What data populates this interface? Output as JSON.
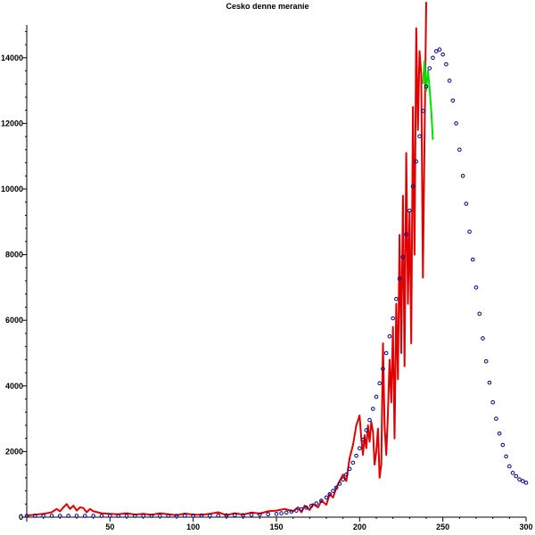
{
  "chart_data": {
    "type": "line",
    "title": "Cesko denne meranie",
    "xlabel": "",
    "ylabel": "",
    "xlim": [
      0,
      300
    ],
    "ylim": [
      0,
      15000
    ],
    "grid": false,
    "x_ticks": [
      50,
      100,
      150,
      200,
      250,
      300
    ],
    "y_ticks": [
      0,
      2000,
      4000,
      6000,
      8000,
      10000,
      12000,
      14000
    ],
    "series": [
      {
        "style": "line",
        "color": "#e00000",
        "x": [
          0,
          5,
          10,
          15,
          18,
          20,
          22,
          24,
          26,
          28,
          30,
          32,
          34,
          36,
          38,
          40,
          45,
          50,
          55,
          60,
          65,
          70,
          75,
          80,
          85,
          90,
          95,
          100,
          105,
          110,
          115,
          120,
          125,
          130,
          135,
          140,
          145,
          150,
          155,
          160,
          163,
          165,
          167,
          170,
          172,
          175,
          177,
          180,
          182,
          184,
          186,
          188,
          190,
          192,
          194,
          196,
          198,
          200,
          201,
          202,
          203,
          204,
          205,
          206,
          207,
          208,
          209,
          210,
          211,
          212,
          213,
          214,
          215,
          216,
          217,
          218,
          219,
          220,
          221,
          222,
          223,
          224,
          225,
          226,
          227,
          228,
          229,
          230,
          231,
          232,
          233,
          234,
          235,
          236,
          237,
          238,
          239,
          240
        ],
        "y": [
          50,
          80,
          100,
          150,
          250,
          180,
          300,
          400,
          250,
          350,
          200,
          300,
          280,
          150,
          250,
          180,
          120,
          100,
          90,
          120,
          80,
          100,
          70,
          120,
          90,
          60,
          110,
          80,
          70,
          100,
          150,
          60,
          120,
          80,
          140,
          110,
          180,
          200,
          250,
          180,
          300,
          150,
          350,
          220,
          400,
          300,
          500,
          380,
          700,
          600,
          900,
          1100,
          1300,
          1100,
          1800,
          2200,
          2800,
          3100,
          2400,
          1900,
          2500,
          2100,
          2800,
          2300,
          2900,
          2600,
          1600,
          2000,
          2700,
          1200,
          1600,
          5300,
          2800,
          1900,
          3200,
          4800,
          3500,
          5800,
          2400,
          6500,
          4200,
          8600,
          5000,
          9800,
          4600,
          11100,
          6500,
          9300,
          5300,
          12500,
          8000,
          14900,
          11800,
          14200,
          13500,
          7300,
          11500,
          15700
        ]
      },
      {
        "style": "line",
        "color": "#00e000",
        "x": [
          238,
          239,
          240,
          241,
          242,
          243,
          244
        ],
        "y": [
          13200,
          13900,
          13000,
          13600,
          13100,
          12400,
          11500
        ]
      },
      {
        "style": "scatter",
        "color": "#00008b",
        "x": [
          0,
          5,
          10,
          15,
          20,
          25,
          30,
          35,
          40,
          45,
          50,
          55,
          60,
          65,
          70,
          75,
          80,
          85,
          90,
          95,
          100,
          105,
          110,
          115,
          120,
          125,
          130,
          135,
          140,
          145,
          150,
          153,
          156,
          159,
          162,
          165,
          168,
          171,
          174,
          177,
          180,
          182,
          184,
          186,
          188,
          190,
          192,
          194,
          196,
          198,
          200,
          202,
          204,
          206,
          208,
          210,
          212,
          214,
          216,
          218,
          220,
          222,
          224,
          226,
          228,
          230,
          232,
          234,
          236,
          238,
          240,
          242,
          244,
          246,
          248,
          250,
          252,
          254,
          256,
          258,
          260,
          262,
          264,
          266,
          268,
          270,
          272,
          274,
          276,
          278,
          280,
          282,
          284,
          286,
          288,
          290,
          292,
          294,
          296,
          298,
          300
        ],
        "y": [
          40,
          40,
          40,
          40,
          40,
          40,
          40,
          40,
          40,
          40,
          40,
          40,
          40,
          40,
          40,
          40,
          40,
          40,
          40,
          45,
          45,
          50,
          50,
          50,
          55,
          60,
          60,
          70,
          80,
          90,
          100,
          120,
          140,
          170,
          200,
          240,
          290,
          350,
          420,
          500,
          600,
          700,
          800,
          900,
          1020,
          1150,
          1300,
          1470,
          1660,
          1870,
          2100,
          2360,
          2650,
          2960,
          3300,
          3670,
          4080,
          4520,
          5000,
          5510,
          6060,
          6650,
          7270,
          7930,
          8620,
          9340,
          10080,
          10840,
          11610,
          12380,
          13120,
          13680,
          14000,
          14200,
          14250,
          14100,
          13800,
          13300,
          12700,
          12000,
          11200,
          10400,
          9550,
          8700,
          7850,
          7000,
          6200,
          5450,
          4750,
          4100,
          3500,
          3000,
          2550,
          2200,
          1850,
          1550,
          1350,
          1250,
          1150,
          1100,
          1050
        ]
      }
    ]
  }
}
